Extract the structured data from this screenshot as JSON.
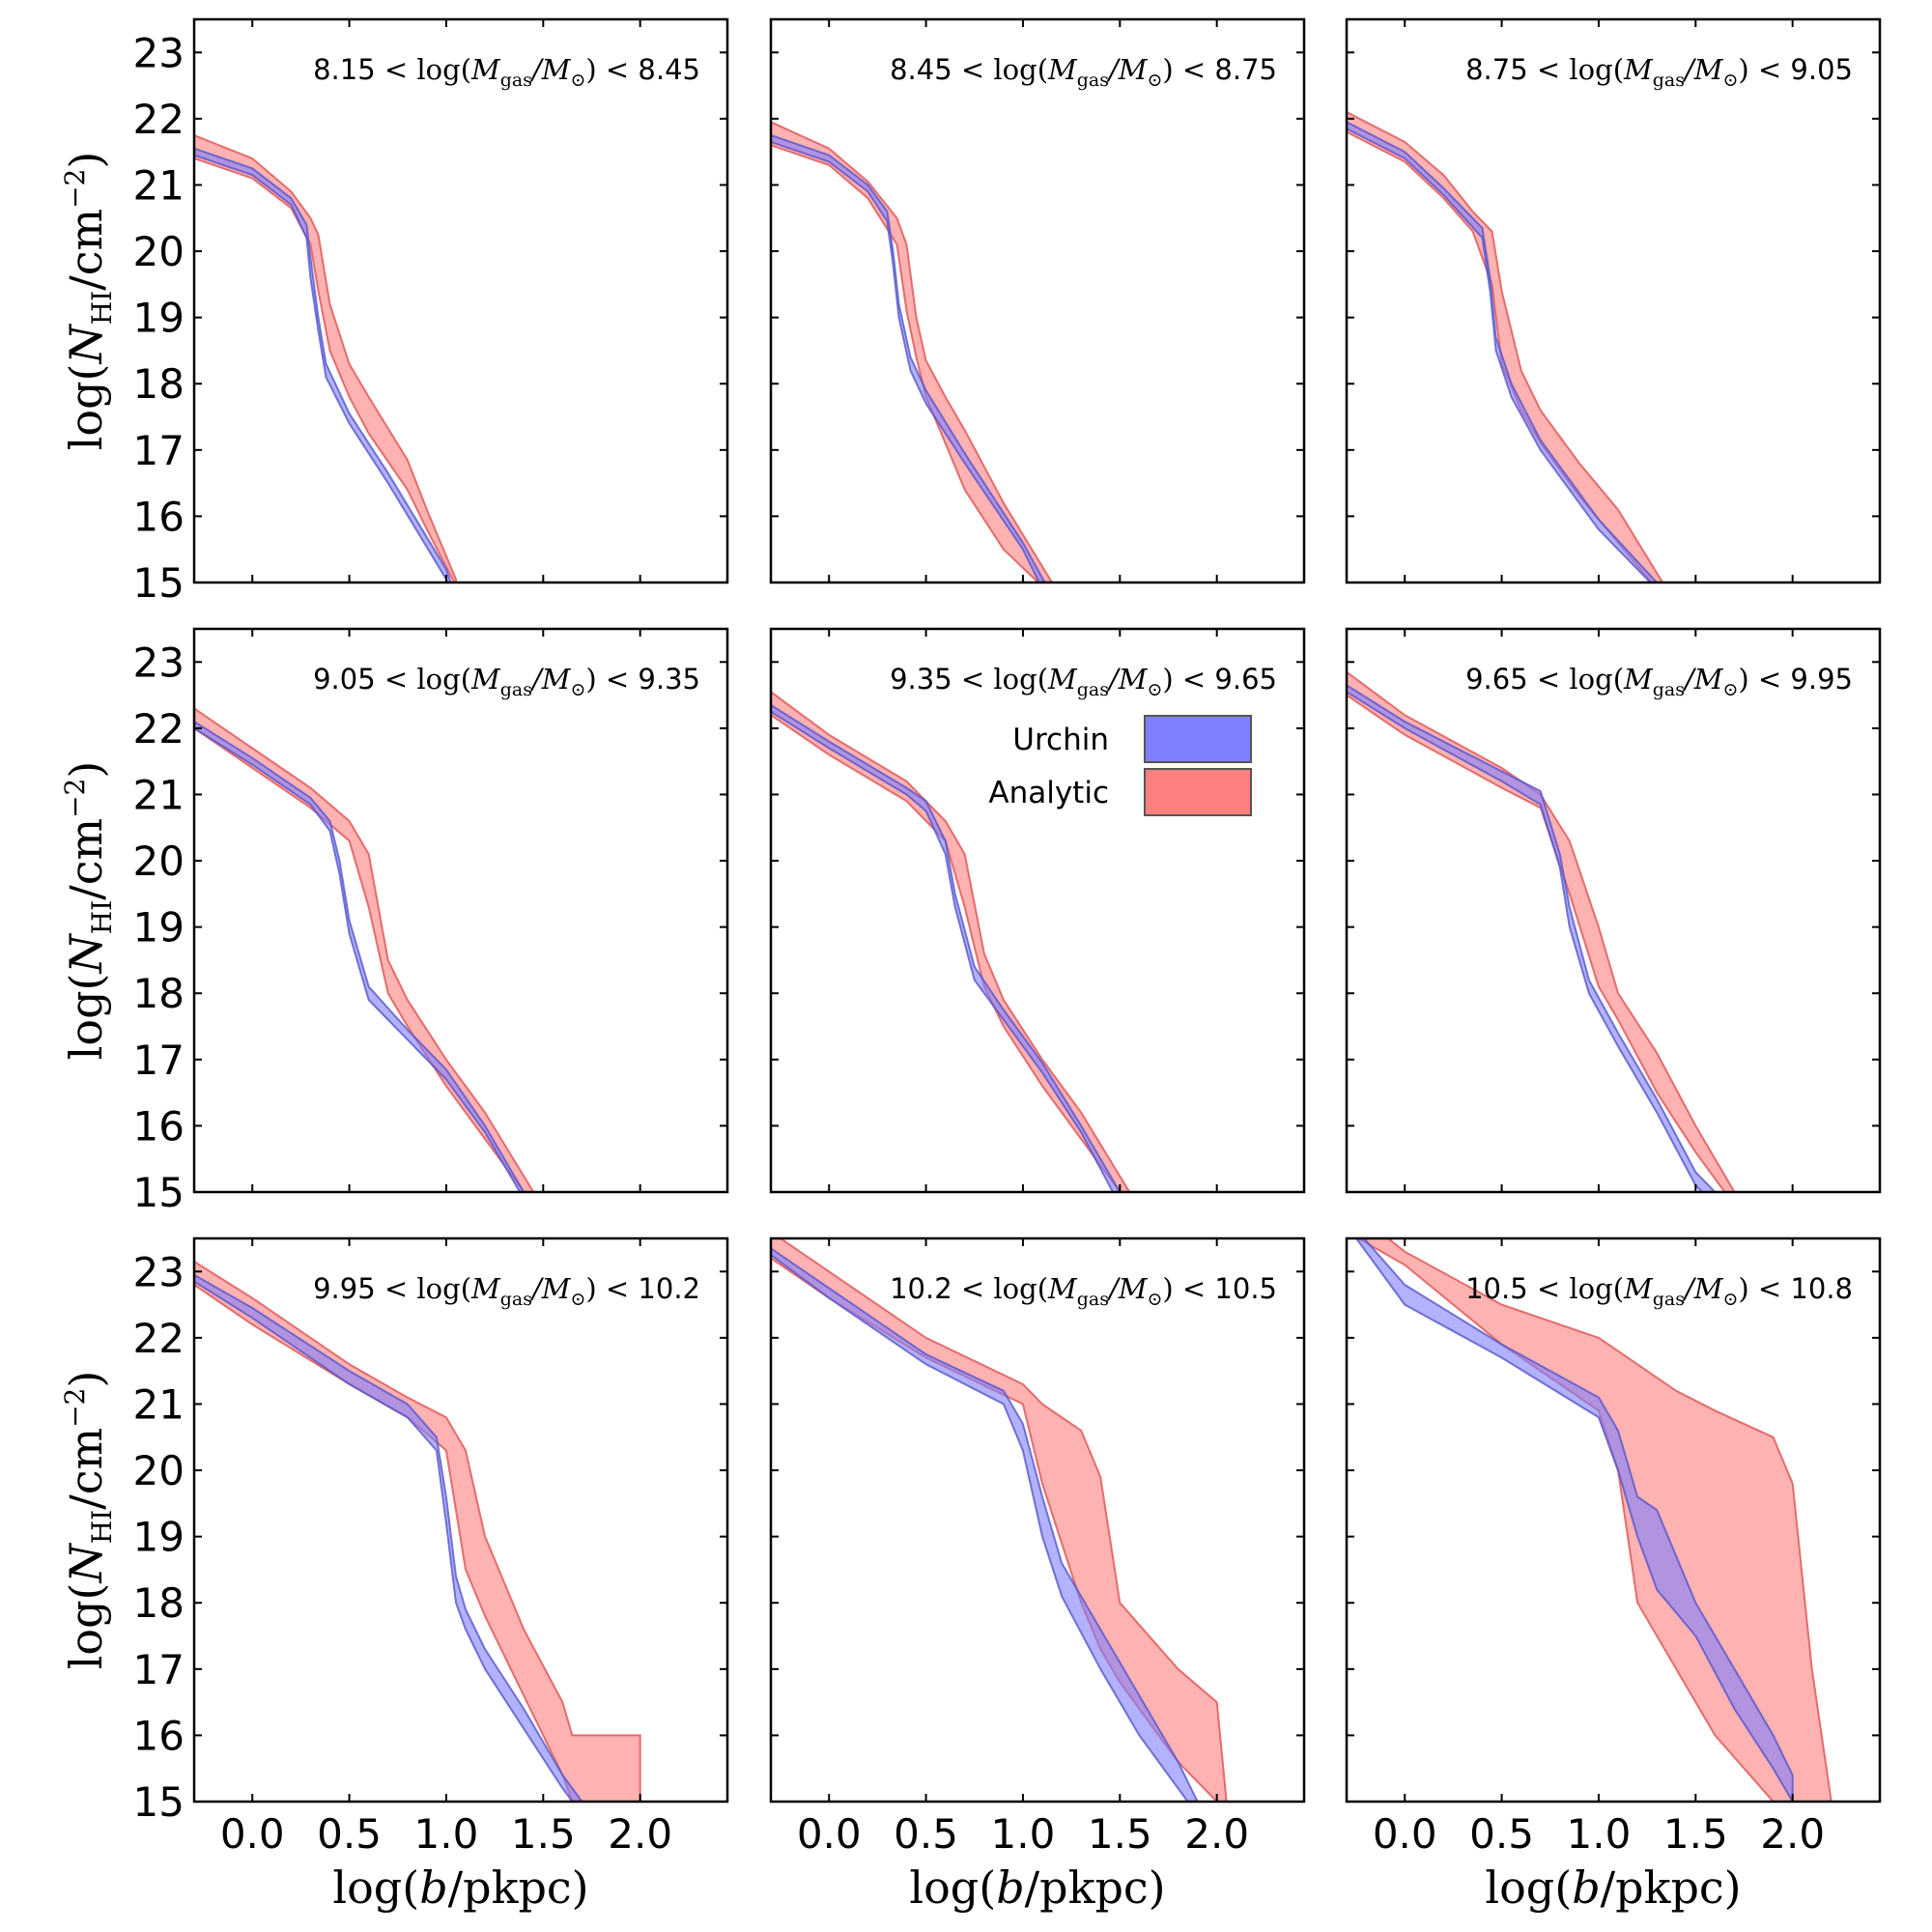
{
  "chart_data": {
    "type": "area",
    "layout": "3x3 grid of panels, shared axes",
    "xlabel": "log(b/pkpc)",
    "ylabel": "log(N_HI/cm^-2)",
    "xlim": [
      -0.3,
      2.45
    ],
    "ylim": [
      15,
      23.5
    ],
    "x_ticks": [
      "0.0",
      "0.5",
      "1.0",
      "1.5",
      "2.0"
    ],
    "y_ticks": [
      "15",
      "16",
      "17",
      "18",
      "19",
      "20",
      "21",
      "22",
      "23"
    ],
    "legend": {
      "placement": "middle panel, upper-right",
      "entries": [
        {
          "label": "Urchin",
          "color": "#7f7fff"
        },
        {
          "label": "Analytic",
          "color": "#ff7f7f"
        }
      ]
    },
    "colors": {
      "urchin": "#7f7fff",
      "urchin_edge": "#5555cc",
      "analytic": "#ff7f7f",
      "analytic_edge": "#e05050"
    },
    "panels": [
      {
        "title": "8.15 < log(M_gas/M_⊙) < 8.45",
        "urchin": {
          "x": [
            -0.3,
            0.0,
            0.2,
            0.28,
            0.3,
            0.34,
            0.38,
            0.5,
            0.7,
            1.0,
            1.06
          ],
          "lower": [
            21.45,
            21.15,
            20.7,
            20.2,
            19.6,
            18.8,
            18.1,
            17.4,
            16.5,
            15.05,
            14.5
          ],
          "upper": [
            21.55,
            21.25,
            20.8,
            20.4,
            19.9,
            19.0,
            18.3,
            17.55,
            16.65,
            15.2,
            14.7
          ]
        },
        "analytic": {
          "x": [
            -0.3,
            0.0,
            0.2,
            0.3,
            0.34,
            0.4,
            0.5,
            0.6,
            0.8,
            0.9,
            1.05
          ],
          "lower": [
            21.4,
            21.1,
            20.65,
            20.1,
            19.4,
            18.5,
            17.8,
            17.25,
            16.4,
            15.8,
            14.95
          ],
          "upper": [
            21.75,
            21.4,
            20.9,
            20.5,
            20.25,
            19.2,
            18.3,
            17.8,
            16.85,
            16.1,
            15.05
          ]
        }
      },
      {
        "title": "8.45 < log(M_gas/M_⊙) < 8.75",
        "urchin": {
          "x": [
            -0.3,
            0.0,
            0.2,
            0.3,
            0.33,
            0.36,
            0.42,
            0.5,
            0.7,
            1.0,
            1.15
          ],
          "lower": [
            21.65,
            21.35,
            20.9,
            20.45,
            19.8,
            19.0,
            18.2,
            17.7,
            16.8,
            15.5,
            14.6
          ],
          "upper": [
            21.75,
            21.45,
            21.0,
            20.6,
            20.0,
            19.2,
            18.4,
            17.9,
            16.95,
            15.6,
            14.8
          ]
        },
        "analytic": {
          "x": [
            -0.3,
            0.0,
            0.2,
            0.35,
            0.4,
            0.45,
            0.5,
            0.6,
            0.7,
            0.9,
            1.15
          ],
          "lower": [
            21.6,
            21.3,
            20.8,
            20.1,
            19.1,
            18.4,
            17.8,
            17.1,
            16.4,
            15.5,
            14.8
          ],
          "upper": [
            21.95,
            21.55,
            21.05,
            20.5,
            20.1,
            19.0,
            18.35,
            17.8,
            17.3,
            16.2,
            15.0
          ]
        }
      },
      {
        "title": "8.75 < log(M_gas/M_⊙) < 9.05",
        "urchin": {
          "x": [
            -0.3,
            0.0,
            0.2,
            0.4,
            0.44,
            0.47,
            0.55,
            0.7,
            1.0,
            1.3,
            1.4
          ],
          "lower": [
            21.85,
            21.4,
            20.85,
            20.2,
            19.4,
            18.5,
            17.8,
            17.0,
            15.8,
            14.9,
            14.6
          ],
          "upper": [
            21.95,
            21.5,
            20.95,
            20.35,
            19.6,
            18.7,
            18.0,
            17.15,
            15.95,
            15.0,
            14.8
          ]
        },
        "analytic": {
          "x": [
            -0.3,
            0.0,
            0.2,
            0.35,
            0.45,
            0.5,
            0.6,
            0.7,
            0.9,
            1.1,
            1.33
          ],
          "lower": [
            21.8,
            21.35,
            20.8,
            20.3,
            19.5,
            18.3,
            17.6,
            17.1,
            16.3,
            15.6,
            14.8
          ],
          "upper": [
            22.1,
            21.65,
            21.15,
            20.6,
            20.3,
            19.4,
            18.2,
            17.6,
            16.8,
            16.1,
            15.0
          ]
        }
      },
      {
        "title": "9.05 < log(M_gas/M_⊙) < 9.35",
        "urchin": {
          "x": [
            -0.3,
            0.0,
            0.3,
            0.4,
            0.45,
            0.5,
            0.6,
            0.8,
            1.0,
            1.2,
            1.4
          ],
          "lower": [
            22.0,
            21.45,
            20.85,
            20.45,
            19.8,
            18.9,
            17.9,
            17.3,
            16.7,
            15.9,
            14.9
          ],
          "upper": [
            22.1,
            21.55,
            20.95,
            20.6,
            20.0,
            19.1,
            18.1,
            17.45,
            16.85,
            16.0,
            15.0
          ]
        },
        "analytic": {
          "x": [
            -0.3,
            0.0,
            0.3,
            0.5,
            0.6,
            0.7,
            0.8,
            1.0,
            1.2,
            1.45
          ],
          "lower": [
            22.0,
            21.4,
            20.8,
            20.3,
            19.3,
            18.0,
            17.5,
            16.6,
            15.8,
            14.8
          ],
          "upper": [
            22.3,
            21.7,
            21.1,
            20.6,
            20.1,
            18.5,
            17.9,
            17.0,
            16.2,
            15.0
          ]
        }
      },
      {
        "title": "9.35 < log(M_gas/M_⊙) < 9.65",
        "urchin": {
          "x": [
            -0.3,
            0.0,
            0.4,
            0.5,
            0.6,
            0.65,
            0.75,
            0.9,
            1.1,
            1.3,
            1.5
          ],
          "lower": [
            22.25,
            21.7,
            21.0,
            20.75,
            20.1,
            19.3,
            18.2,
            17.6,
            16.8,
            15.9,
            14.8
          ],
          "upper": [
            22.35,
            21.8,
            21.1,
            20.9,
            20.3,
            19.5,
            18.4,
            17.75,
            16.95,
            16.0,
            15.0
          ]
        },
        "analytic": {
          "x": [
            -0.3,
            0.0,
            0.4,
            0.6,
            0.7,
            0.8,
            0.9,
            1.1,
            1.3,
            1.55
          ],
          "lower": [
            22.2,
            21.6,
            20.9,
            20.3,
            19.3,
            18.1,
            17.5,
            16.6,
            15.8,
            14.8
          ],
          "upper": [
            22.55,
            21.9,
            21.2,
            20.6,
            20.1,
            18.6,
            17.9,
            17.0,
            16.2,
            15.0
          ]
        }
      },
      {
        "title": "9.65 < log(M_gas/M_⊙) < 9.95",
        "urchin": {
          "x": [
            -0.3,
            0.0,
            0.5,
            0.7,
            0.8,
            0.85,
            0.95,
            1.1,
            1.3,
            1.5,
            1.6
          ],
          "lower": [
            22.55,
            22.0,
            21.2,
            20.85,
            19.9,
            19.0,
            18.0,
            17.2,
            16.2,
            15.1,
            14.8
          ],
          "upper": [
            22.65,
            22.1,
            21.35,
            21.05,
            20.1,
            19.3,
            18.2,
            17.4,
            16.4,
            15.3,
            15.0
          ]
        },
        "analytic": {
          "x": [
            -0.3,
            0.0,
            0.5,
            0.7,
            0.85,
            1.0,
            1.1,
            1.3,
            1.5,
            1.7
          ],
          "lower": [
            22.5,
            21.9,
            21.1,
            20.8,
            19.5,
            18.1,
            17.6,
            16.5,
            15.6,
            14.8
          ],
          "upper": [
            22.85,
            22.2,
            21.4,
            21.0,
            20.3,
            19.0,
            18.0,
            17.1,
            16.0,
            15.0
          ]
        }
      },
      {
        "title": "9.95 < log(M_gas/M_⊙) < 10.2",
        "urchin": {
          "x": [
            -0.3,
            0.0,
            0.5,
            0.8,
            0.95,
            1.0,
            1.05,
            1.1,
            1.2,
            1.4,
            1.6,
            1.7
          ],
          "lower": [
            22.85,
            22.3,
            21.3,
            20.8,
            20.3,
            19.2,
            18.0,
            17.6,
            17.0,
            16.1,
            15.2,
            14.8
          ],
          "upper": [
            22.95,
            22.45,
            21.5,
            21.0,
            20.5,
            19.6,
            18.4,
            17.9,
            17.3,
            16.4,
            15.4,
            15.0
          ]
        },
        "analytic": {
          "x": [
            -0.3,
            0.0,
            0.5,
            0.8,
            1.0,
            1.1,
            1.2,
            1.4,
            1.6,
            1.65,
            2.0
          ],
          "lower": [
            22.8,
            22.2,
            21.3,
            20.8,
            20.3,
            18.5,
            17.8,
            16.6,
            15.4,
            15.0,
            15.0
          ],
          "upper": [
            23.15,
            22.6,
            21.6,
            21.1,
            20.8,
            20.3,
            19.0,
            17.6,
            16.5,
            16.0,
            16.0
          ]
        }
      },
      {
        "title": "10.2 < log(M_gas/M_⊙) < 10.5",
        "urchin": {
          "x": [
            -0.3,
            0.0,
            0.5,
            0.9,
            1.0,
            1.1,
            1.2,
            1.4,
            1.6,
            1.8,
            1.9
          ],
          "lower": [
            23.25,
            22.6,
            21.6,
            21.0,
            20.3,
            19.0,
            18.1,
            17.0,
            16.0,
            15.2,
            14.8
          ],
          "upper": [
            23.35,
            22.75,
            21.75,
            21.2,
            20.7,
            19.6,
            18.6,
            17.6,
            16.6,
            15.6,
            15.0
          ]
        },
        "analytic": {
          "x": [
            -0.3,
            0.0,
            0.5,
            1.0,
            1.1,
            1.3,
            1.4,
            1.5,
            1.8,
            2.0,
            2.05
          ],
          "lower": [
            23.2,
            22.6,
            21.7,
            21.0,
            19.8,
            18.0,
            17.3,
            16.8,
            15.6,
            15.0,
            15.0
          ],
          "upper": [
            23.6,
            23.0,
            22.0,
            21.3,
            21.0,
            20.6,
            19.9,
            18.0,
            17.0,
            16.5,
            15.0
          ]
        }
      },
      {
        "title": "10.5 < log(M_gas/M_⊙) < 10.8",
        "urchin": {
          "x": [
            -0.3,
            0.0,
            0.5,
            1.0,
            1.1,
            1.2,
            1.3,
            1.5,
            1.7,
            1.9,
            2.0
          ],
          "lower": [
            23.7,
            22.5,
            21.7,
            20.8,
            20.0,
            19.0,
            18.2,
            17.5,
            16.4,
            15.5,
            15.0
          ],
          "upper": [
            23.8,
            22.8,
            21.9,
            21.1,
            20.6,
            19.6,
            19.4,
            18.0,
            17.0,
            16.0,
            15.4
          ]
        },
        "analytic": {
          "x": [
            -0.3,
            0.0,
            0.5,
            1.0,
            1.1,
            1.2,
            1.4,
            1.6,
            1.9,
            2.0,
            2.1,
            2.2
          ],
          "lower": [
            23.6,
            23.1,
            21.9,
            20.9,
            20.0,
            18.0,
            17.0,
            16.0,
            15.0,
            15.0,
            15.0,
            15.0
          ],
          "upper": [
            24.0,
            23.3,
            22.5,
            22.0,
            21.8,
            21.6,
            21.2,
            20.9,
            20.5,
            19.8,
            17.0,
            15.0
          ]
        }
      }
    ]
  }
}
